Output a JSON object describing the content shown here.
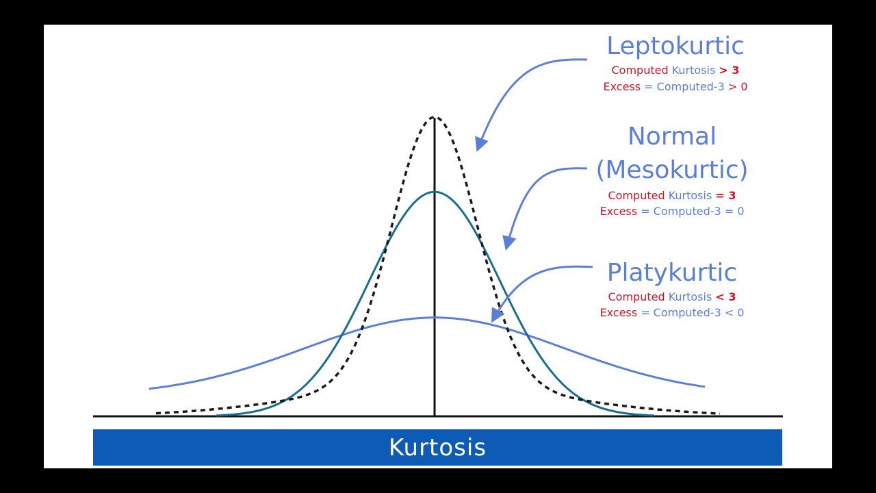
{
  "colors": {
    "background": "#000000",
    "panel": "#ffffff",
    "banner": "#0d5bb5",
    "leptokurtic_curve": "#1a1a1a",
    "normal_curve": "#1a6e8c",
    "platykurtic_curve": "#5b7fd6",
    "label_blue": "#5b7fd6",
    "label_red": "#d0142a",
    "axis": "#111111"
  },
  "banner": {
    "title": "Kurtosis"
  },
  "labels": {
    "leptokurtic": {
      "title": "Leptokurtic",
      "line1": {
        "a": "Computed",
        "b": "Kurtosis",
        "c": "> 3"
      },
      "line2": {
        "a": "Excess",
        "b": "= Computed-3",
        "c": "> 0"
      }
    },
    "normal": {
      "title_line1": "Normal",
      "title_line2": "(Mesokurtic)",
      "line1": {
        "a": "Computed",
        "b": "Kurtosis",
        "c": "= 3"
      },
      "line2": {
        "a": "Excess",
        "b": "= Computed-3 = 0"
      }
    },
    "platykurtic": {
      "title": "Platykurtic",
      "line1": {
        "a": "Computed",
        "b": "Kurtosis",
        "c": "< 3"
      },
      "line2": {
        "a": "Excess",
        "b": "= Computed-3 < 0"
      }
    }
  },
  "curves": [
    {
      "name": "leptokurtic",
      "style": "dashed",
      "relative_peak": 1.0
    },
    {
      "name": "normal",
      "style": "solid",
      "relative_peak": 0.75
    },
    {
      "name": "platykurtic",
      "style": "solid",
      "relative_peak": 0.33
    }
  ]
}
